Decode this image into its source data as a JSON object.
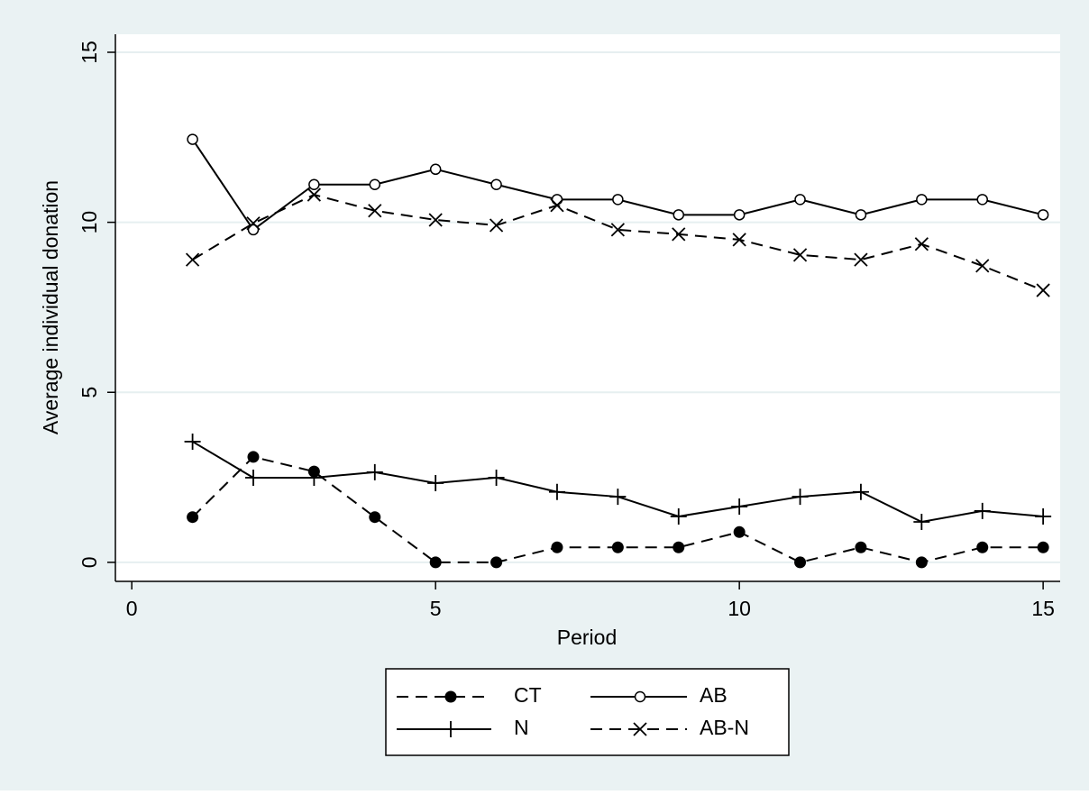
{
  "chart_data": {
    "type": "line",
    "xlabel": "Period",
    "ylabel": "Average individual donation",
    "x": [
      1,
      2,
      3,
      4,
      5,
      6,
      7,
      8,
      9,
      10,
      11,
      12,
      13,
      14,
      15
    ],
    "series": [
      {
        "name": "CT",
        "color": "#000000",
        "dash": true,
        "marker": "filled-circle",
        "values": [
          1.33,
          3.1,
          2.67,
          1.33,
          0,
          0,
          0.44,
          0.44,
          0.44,
          0.89,
          0,
          0.44,
          0,
          0.44,
          0.44
        ]
      },
      {
        "name": "AB",
        "color": "#000000",
        "dash": false,
        "marker": "hollow-circle",
        "values": [
          12.44,
          9.78,
          11.11,
          11.11,
          11.56,
          11.11,
          10.67,
          10.67,
          10.22,
          10.22,
          10.67,
          10.22,
          10.67,
          10.67,
          10.22
        ]
      },
      {
        "name": "N",
        "color": "#000000",
        "dash": false,
        "marker": "plus",
        "values": [
          3.55,
          2.49,
          2.49,
          2.65,
          2.33,
          2.49,
          2.07,
          1.93,
          1.35,
          1.64,
          1.93,
          2.07,
          1.19,
          1.51,
          1.35
        ]
      },
      {
        "name": "AB-N",
        "color": "#000000",
        "dash": true,
        "marker": "cross",
        "values": [
          8.9,
          9.97,
          10.81,
          10.34,
          10.07,
          9.91,
          10.5,
          9.78,
          9.65,
          9.49,
          9.04,
          8.9,
          9.36,
          8.72,
          8.0
        ]
      }
    ],
    "xlim": [
      -0.27,
      15.28
    ],
    "ylim": [
      -0.56,
      15.53
    ],
    "xticks": [
      0,
      5,
      10,
      15
    ],
    "yticks": [
      0,
      5,
      10,
      15
    ],
    "grid": true,
    "legend": "bottom"
  }
}
